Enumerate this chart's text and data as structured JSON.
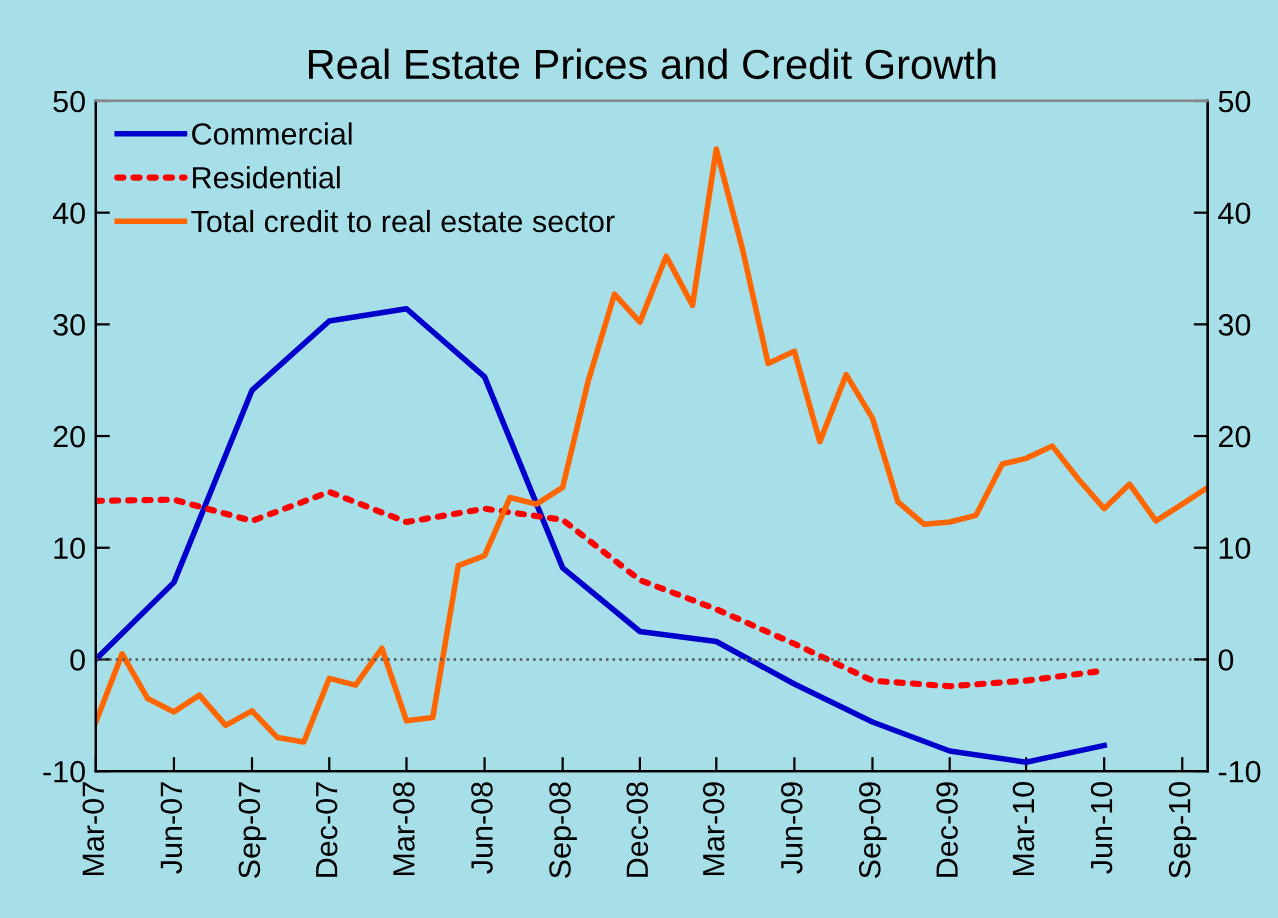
{
  "chart_data": {
    "type": "line",
    "title": "Real Estate Prices and Credit Growth",
    "series": [
      {
        "name": "Commercial",
        "color": "#0000cc",
        "line_style": "solid",
        "x": [
          "2007-03",
          "2007-06",
          "2007-09",
          "2007-12",
          "2008-03",
          "2008-06",
          "2008-09",
          "2008-12",
          "2009-03",
          "2009-06",
          "2009-09",
          "2009-12",
          "2010-03",
          "2010-06"
        ],
        "values": [
          0,
          6.9,
          24.1,
          30.3,
          31.4,
          25.3,
          8.2,
          2.5,
          1.6,
          -2.2,
          -5.6,
          -8.2,
          -9.2,
          -7.7
        ]
      },
      {
        "name": "Residential",
        "color": "#ff0000",
        "line_style": "dotted",
        "x": [
          "2007-03",
          "2007-06",
          "2007-09",
          "2007-12",
          "2008-03",
          "2008-06",
          "2008-09",
          "2008-12",
          "2009-03",
          "2009-06",
          "2009-09",
          "2009-12",
          "2010-03",
          "2010-06"
        ],
        "values": [
          14.2,
          14.3,
          12.4,
          15.0,
          12.3,
          13.5,
          12.5,
          7.1,
          4.5,
          1.4,
          -1.9,
          -2.4,
          -1.9,
          -1.0
        ]
      },
      {
        "name": "Total credit to real estate sector",
        "color": "#ff6600",
        "line_style": "solid",
        "x": [
          "2007-03",
          "2007-04",
          "2007-05",
          "2007-06",
          "2007-07",
          "2007-08",
          "2007-09",
          "2007-10",
          "2007-11",
          "2007-12",
          "2008-01",
          "2008-02",
          "2008-03",
          "2008-04",
          "2008-05",
          "2008-06",
          "2008-07",
          "2008-08",
          "2008-09",
          "2008-10",
          "2008-11",
          "2008-12",
          "2009-01",
          "2009-02",
          "2009-03",
          "2009-04",
          "2009-05",
          "2009-06",
          "2009-07",
          "2009-08",
          "2009-09",
          "2009-10",
          "2009-11",
          "2009-12",
          "2010-01",
          "2010-02",
          "2010-03",
          "2010-04",
          "2010-05",
          "2010-06",
          "2010-07",
          "2010-08",
          "2010-09",
          "2010-10"
        ],
        "values": [
          -5.6,
          0.5,
          -3.5,
          -4.7,
          -3.2,
          -5.9,
          -4.6,
          -7.0,
          -7.4,
          -1.7,
          -2.3,
          1.0,
          -5.5,
          -5.2,
          8.4,
          9.3,
          14.5,
          13.9,
          15.4,
          24.9,
          32.7,
          30.2,
          36.1,
          31.7,
          45.7,
          36.7,
          26.5,
          27.6,
          19.5,
          25.5,
          21.6,
          14.1,
          12.1,
          12.3,
          12.9,
          17.5,
          18.0,
          19.1,
          16.2,
          13.5,
          15.7,
          12.4,
          13.9,
          15.4
        ]
      }
    ],
    "xlim": [
      "2007-03",
      "2010-10"
    ],
    "xticks": [
      {
        "value": "2007-03",
        "label": "Mar-07"
      },
      {
        "value": "2007-06",
        "label": "Jun-07"
      },
      {
        "value": "2007-09",
        "label": "Sep-07"
      },
      {
        "value": "2007-12",
        "label": "Dec-07"
      },
      {
        "value": "2008-03",
        "label": "Mar-08"
      },
      {
        "value": "2008-06",
        "label": "Jun-08"
      },
      {
        "value": "2008-09",
        "label": "Sep-08"
      },
      {
        "value": "2008-12",
        "label": "Dec-08"
      },
      {
        "value": "2009-03",
        "label": "Mar-09"
      },
      {
        "value": "2009-06",
        "label": "Jun-09"
      },
      {
        "value": "2009-09",
        "label": "Sep-09"
      },
      {
        "value": "2009-12",
        "label": "Dec-09"
      },
      {
        "value": "2010-03",
        "label": "Mar-10"
      },
      {
        "value": "2010-06",
        "label": "Jun-10"
      },
      {
        "value": "2010-09",
        "label": "Sep-10"
      }
    ],
    "ylim": [
      -10,
      50
    ],
    "yticks": [
      -10,
      0,
      10,
      20,
      30,
      40,
      50
    ],
    "y2lim": [
      -10,
      50
    ],
    "y2ticks": [
      -10,
      0,
      10,
      20,
      30,
      40,
      50
    ],
    "ref_lines": [
      {
        "axis": "y",
        "value": 0,
        "color": "#555555",
        "line_style": "dotted"
      }
    ],
    "grid": false,
    "legend": "top left",
    "marker": "none"
  }
}
